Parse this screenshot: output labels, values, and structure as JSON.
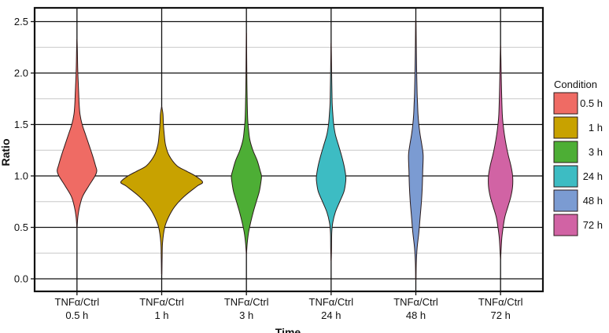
{
  "chart_data": {
    "type": "violin",
    "xlabel": "Time",
    "ylabel": "Ratio",
    "ylim": [
      -0.1,
      2.6
    ],
    "yticks": [
      0.0,
      0.5,
      1.0,
      1.5,
      2.0,
      2.5
    ],
    "ytick_labels": [
      "0.0",
      "0.5",
      "1.0",
      "1.5",
      "2.0",
      "2.5"
    ],
    "grid": true,
    "legend_title": "Condition",
    "legend_position": "right",
    "series": [
      {
        "name": "0.5 h",
        "tick_line1": "TNFα/Ctrl",
        "tick_line2": "0.5 h",
        "color": "#EF6B64",
        "min": 0.5,
        "max": 2.32,
        "profile": [
          [
            0.5,
            0.003
          ],
          [
            0.6,
            0.02
          ],
          [
            0.7,
            0.06
          ],
          [
            0.8,
            0.13
          ],
          [
            0.9,
            0.27
          ],
          [
            1.0,
            0.42
          ],
          [
            1.05,
            0.46
          ],
          [
            1.1,
            0.43
          ],
          [
            1.2,
            0.36
          ],
          [
            1.3,
            0.28
          ],
          [
            1.4,
            0.2
          ],
          [
            1.5,
            0.12
          ],
          [
            1.6,
            0.07
          ],
          [
            1.7,
            0.05
          ],
          [
            1.8,
            0.04
          ],
          [
            1.9,
            0.03
          ],
          [
            2.0,
            0.02
          ],
          [
            2.1,
            0.014
          ],
          [
            2.2,
            0.01
          ],
          [
            2.32,
            0.003
          ]
        ]
      },
      {
        "name": "1 h",
        "tick_line1": "TNFα/Ctrl",
        "tick_line2": "1 h",
        "color": "#C8A200",
        "min": 0.05,
        "max": 1.67,
        "profile": [
          [
            0.05,
            0.003
          ],
          [
            0.2,
            0.01
          ],
          [
            0.35,
            0.02
          ],
          [
            0.5,
            0.07
          ],
          [
            0.6,
            0.16
          ],
          [
            0.7,
            0.3
          ],
          [
            0.8,
            0.52
          ],
          [
            0.9,
            0.82
          ],
          [
            0.94,
            0.95
          ],
          [
            1.0,
            0.78
          ],
          [
            1.05,
            0.56
          ],
          [
            1.1,
            0.35
          ],
          [
            1.2,
            0.17
          ],
          [
            1.3,
            0.09
          ],
          [
            1.4,
            0.06
          ],
          [
            1.5,
            0.04
          ],
          [
            1.6,
            0.03
          ],
          [
            1.67,
            0.003
          ]
        ]
      },
      {
        "name": "3 h",
        "tick_line1": "TNFα/Ctrl",
        "tick_line2": "3 h",
        "color": "#4DAE35",
        "min": 0.25,
        "max": 2.37,
        "profile": [
          [
            0.25,
            0.003
          ],
          [
            0.35,
            0.02
          ],
          [
            0.45,
            0.05
          ],
          [
            0.55,
            0.1
          ],
          [
            0.65,
            0.16
          ],
          [
            0.75,
            0.23
          ],
          [
            0.85,
            0.3
          ],
          [
            0.95,
            0.34
          ],
          [
            1.0,
            0.35
          ],
          [
            1.05,
            0.32
          ],
          [
            1.15,
            0.25
          ],
          [
            1.25,
            0.15
          ],
          [
            1.35,
            0.08
          ],
          [
            1.45,
            0.05
          ],
          [
            1.55,
            0.03
          ],
          [
            1.7,
            0.02
          ],
          [
            1.9,
            0.012
          ],
          [
            2.1,
            0.008
          ],
          [
            2.37,
            0.003
          ]
        ]
      },
      {
        "name": "24 h",
        "tick_line1": "TNFα/Ctrl",
        "tick_line2": "24 h",
        "color": "#3DBCC3",
        "min": 0.18,
        "max": 2.27,
        "profile": [
          [
            0.18,
            0.003
          ],
          [
            0.3,
            0.01
          ],
          [
            0.45,
            0.015
          ],
          [
            0.55,
            0.04
          ],
          [
            0.65,
            0.1
          ],
          [
            0.75,
            0.2
          ],
          [
            0.85,
            0.3
          ],
          [
            0.95,
            0.34
          ],
          [
            1.0,
            0.34
          ],
          [
            1.1,
            0.3
          ],
          [
            1.2,
            0.24
          ],
          [
            1.3,
            0.17
          ],
          [
            1.4,
            0.1
          ],
          [
            1.5,
            0.06
          ],
          [
            1.6,
            0.04
          ],
          [
            1.7,
            0.025
          ],
          [
            1.8,
            0.02
          ],
          [
            2.0,
            0.012
          ],
          [
            2.27,
            0.003
          ]
        ]
      },
      {
        "name": "48 h",
        "tick_line1": "TNFα/Ctrl",
        "tick_line2": "48 h",
        "color": "#7B9BD2",
        "min": 0.0,
        "max": 2.5,
        "profile": [
          [
            0.0,
            0.003
          ],
          [
            0.15,
            0.01
          ],
          [
            0.3,
            0.03
          ],
          [
            0.45,
            0.07
          ],
          [
            0.6,
            0.1
          ],
          [
            0.75,
            0.13
          ],
          [
            0.9,
            0.15
          ],
          [
            1.05,
            0.16
          ],
          [
            1.2,
            0.17
          ],
          [
            1.3,
            0.14
          ],
          [
            1.4,
            0.1
          ],
          [
            1.5,
            0.07
          ],
          [
            1.6,
            0.05
          ],
          [
            1.7,
            0.04
          ],
          [
            1.8,
            0.03
          ],
          [
            2.0,
            0.02
          ],
          [
            2.2,
            0.012
          ],
          [
            2.35,
            0.008
          ],
          [
            2.5,
            0.003
          ]
        ]
      },
      {
        "name": "72 h",
        "tick_line1": "TNFα/Ctrl",
        "tick_line2": "72 h",
        "color": "#D163A4",
        "min": 0.2,
        "max": 2.25,
        "profile": [
          [
            0.2,
            0.003
          ],
          [
            0.3,
            0.015
          ],
          [
            0.4,
            0.03
          ],
          [
            0.5,
            0.06
          ],
          [
            0.6,
            0.1
          ],
          [
            0.7,
            0.17
          ],
          [
            0.8,
            0.24
          ],
          [
            0.9,
            0.28
          ],
          [
            1.0,
            0.28
          ],
          [
            1.1,
            0.24
          ],
          [
            1.2,
            0.18
          ],
          [
            1.3,
            0.13
          ],
          [
            1.4,
            0.09
          ],
          [
            1.5,
            0.06
          ],
          [
            1.6,
            0.04
          ],
          [
            1.8,
            0.025
          ],
          [
            2.0,
            0.015
          ],
          [
            2.25,
            0.003
          ]
        ]
      }
    ]
  }
}
